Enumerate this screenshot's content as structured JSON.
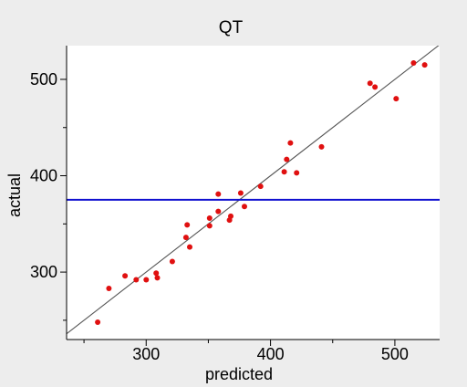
{
  "chart_data": {
    "type": "scatter",
    "title": "QT",
    "xlabel": "predicted",
    "ylabel": "actual",
    "xlim": [
      236,
      536
    ],
    "ylim": [
      230,
      535
    ],
    "x_ticks": [
      300,
      400,
      500
    ],
    "y_ticks": [
      300,
      400,
      500
    ],
    "grid": false,
    "points": [
      {
        "x": 261,
        "y": 248
      },
      {
        "x": 270,
        "y": 283
      },
      {
        "x": 283,
        "y": 296
      },
      {
        "x": 292,
        "y": 292
      },
      {
        "x": 300,
        "y": 292
      },
      {
        "x": 308,
        "y": 299
      },
      {
        "x": 309,
        "y": 294
      },
      {
        "x": 321,
        "y": 311
      },
      {
        "x": 332,
        "y": 336
      },
      {
        "x": 333,
        "y": 349
      },
      {
        "x": 335,
        "y": 326
      },
      {
        "x": 351,
        "y": 356
      },
      {
        "x": 351,
        "y": 348
      },
      {
        "x": 358,
        "y": 363
      },
      {
        "x": 358,
        "y": 381
      },
      {
        "x": 367,
        "y": 354
      },
      {
        "x": 368,
        "y": 358
      },
      {
        "x": 376,
        "y": 382
      },
      {
        "x": 379,
        "y": 368
      },
      {
        "x": 392,
        "y": 389
      },
      {
        "x": 411,
        "y": 404
      },
      {
        "x": 413,
        "y": 417
      },
      {
        "x": 416,
        "y": 434
      },
      {
        "x": 421,
        "y": 403
      },
      {
        "x": 441,
        "y": 430
      },
      {
        "x": 480,
        "y": 496
      },
      {
        "x": 484,
        "y": 492
      },
      {
        "x": 501,
        "y": 480
      },
      {
        "x": 515,
        "y": 517
      },
      {
        "x": 524,
        "y": 515
      }
    ],
    "reference_line": {
      "type": "identity",
      "from": 236,
      "to": 536
    },
    "mean_line_y": 375,
    "colors": {
      "points": "#e01010",
      "reference_line": "#555555",
      "mean_line": "#1010d0",
      "axis": "#000000",
      "background": "#ededed",
      "plot_background": "#ffffff"
    }
  }
}
